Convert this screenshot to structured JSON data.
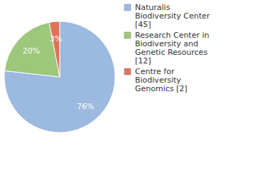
{
  "chart_data": {
    "type": "pie",
    "categories": [
      "Naturalis Biodiversity Center [45]",
      "Research Center in Biodiversity and Genetic Resources [12]",
      "Centre for Biodiversity Genomics [2]"
    ],
    "values": [
      76,
      20,
      3
    ],
    "value_labels": [
      "76%",
      "20%",
      "3%"
    ],
    "colors": [
      "#9cb9e0",
      "#9dc77a",
      "#e07257"
    ],
    "data_labels": true
  }
}
